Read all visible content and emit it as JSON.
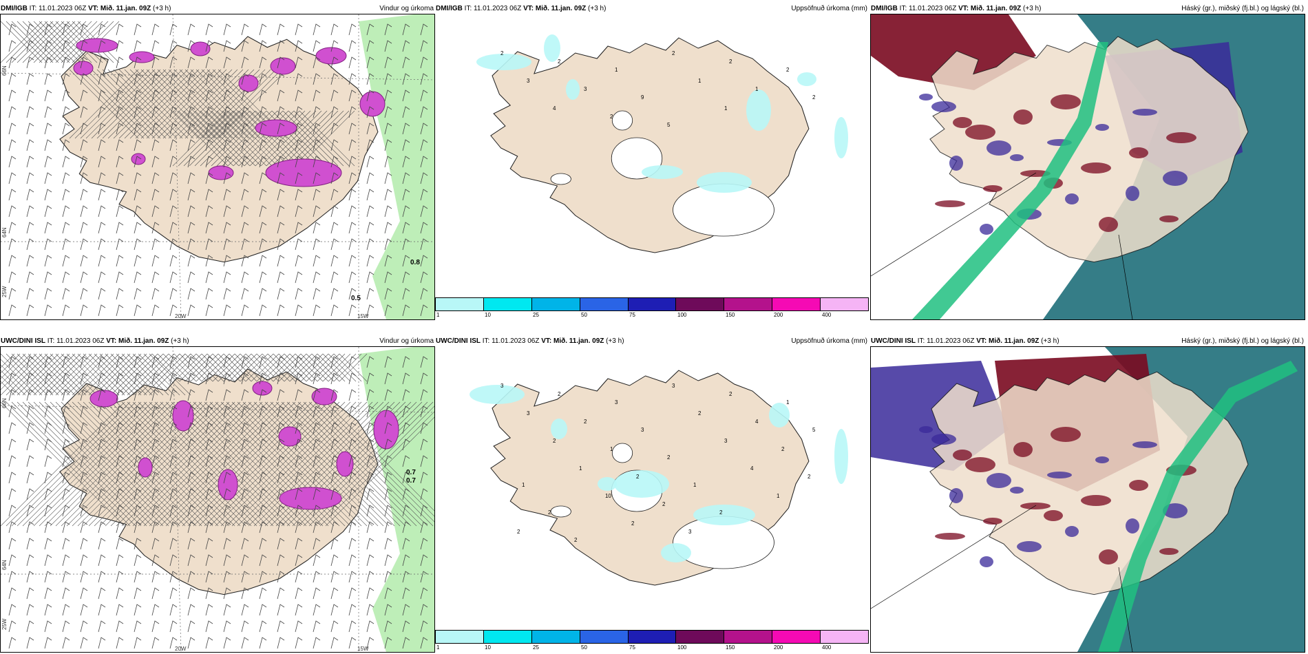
{
  "panels": [
    {
      "model": "DMI/IGB",
      "it": "IT: 11.01.2023 06Z",
      "vt_label": "VT:",
      "vt": "Mið. 11.jan. 09Z",
      "lead": "(+3 h)",
      "title": "Vindur og úrkoma"
    },
    {
      "model": "DMI/IGB",
      "it": "IT: 11.01.2023 06Z",
      "vt_label": "VT:",
      "vt": "Mið. 11.jan. 09Z",
      "lead": "(+3 h)",
      "title": "Uppsöfnuð úrkoma (mm)"
    },
    {
      "model": "DMI/IGB",
      "it": "IT: 11.01.2023 06Z",
      "vt_label": "VT:",
      "vt": "Mið. 11.jan. 09Z",
      "lead": "(+3 h)",
      "title": "Háský (gr.), miðský (fj.bl.) og lágský (bl.)"
    },
    {
      "model": "UWC/DINI ISL",
      "it": "IT: 11.01.2023 06Z",
      "vt_label": "VT:",
      "vt": "Mið. 11.jan. 09Z",
      "lead": "(+3 h)",
      "title": "Vindur og úrkoma"
    },
    {
      "model": "UWC/DINI ISL",
      "it": "IT: 11.01.2023 06Z",
      "vt_label": "VT:",
      "vt": "Mið. 11.jan. 09Z",
      "lead": "(+3 h)",
      "title": "Uppsöfnuð úrkoma (mm)"
    },
    {
      "model": "UWC/DINI ISL",
      "it": "IT: 11.01.2023 06Z",
      "vt_label": "VT:",
      "vt": "Mið. 11.jan. 09Z",
      "lead": "(+3 h)",
      "title": "Háský (gr.), miðský (fj.bl.) og lágský (bl.)"
    }
  ],
  "grid_labels": {
    "lat66": "66N",
    "lat64": "64N",
    "lon20": "20W",
    "lon15": "15W",
    "lon25": "25W"
  },
  "wind_values_top": {
    "a": "0.5",
    "b": "0.8"
  },
  "wind_values_bottom": {
    "a": "0.7",
    "b": "0.7"
  },
  "colorbar": {
    "ticks": [
      "1",
      "10",
      "25",
      "50",
      "75",
      "100",
      "150",
      "200",
      "400"
    ],
    "colors": [
      "#b8f7f7",
      "#00e8f0",
      "#00b4e8",
      "#2a64e6",
      "#1e1eb4",
      "#6e0a5a",
      "#b4128c",
      "#f50ab4",
      "#f5b4f5"
    ]
  },
  "precip_numbers_top": [
    "2",
    "2",
    "1",
    "2",
    "2",
    "2",
    "3",
    "3",
    "9",
    "1",
    "1",
    "2",
    "4",
    "2",
    "5",
    "1"
  ],
  "precip_numbers_bottom": [
    "3",
    "2",
    "3",
    "3",
    "2",
    "1",
    "3",
    "2",
    "3",
    "2",
    "4",
    "5",
    "2",
    "1",
    "2",
    "3",
    "2",
    "1",
    "1",
    "2",
    "1",
    "4",
    "2",
    "2",
    "10",
    "2",
    "2",
    "1",
    "2",
    "2",
    "2",
    "3"
  ],
  "colors": {
    "land": "#efdfcc",
    "precip_light": "#b8f7f7",
    "snow": "#d050d0",
    "wind_green": "#a8e8a0",
    "cloud_high": "#7a0a20",
    "cloud_mid": "#3a2a9a",
    "cloud_low": "#1f6f7a",
    "cloud_green": "#20c080"
  }
}
